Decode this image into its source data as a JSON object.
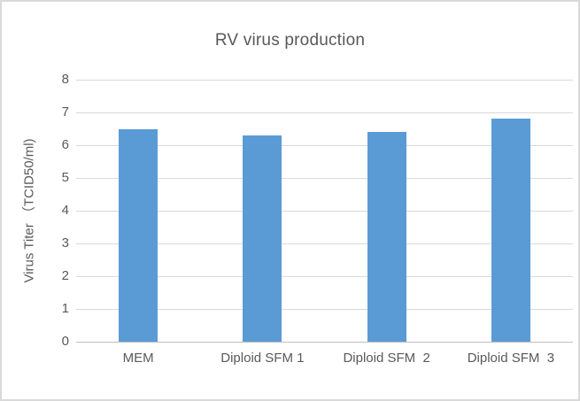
{
  "chart_data": {
    "type": "bar",
    "title": "RV virus production",
    "categories": [
      "MEM",
      "Diploid SFM 1",
      "Diploid SFM  2",
      "Diploid SFM  3"
    ],
    "values": [
      6.5,
      6.3,
      6.4,
      6.8
    ],
    "xlabel": "",
    "ylabel": "Virus Titer （TCID50/ml)",
    "ylim": [
      0,
      8
    ],
    "yticks": [
      0,
      1,
      2,
      3,
      4,
      5,
      6,
      7,
      8
    ],
    "grid": true,
    "legend": false,
    "bar_color": "#5B9BD5",
    "gridline_color": "#D9D9D9",
    "axis_line_color": "#BFBFBF",
    "text_color": "#595959",
    "border_color": "#D9D9D9",
    "background": "#FFFFFF"
  }
}
